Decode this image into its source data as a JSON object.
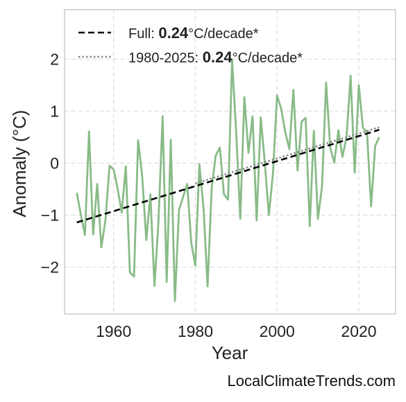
{
  "chart_data": {
    "type": "line",
    "xlabel": "Year",
    "ylabel": "Anomaly (°C)",
    "xlim": [
      1948,
      2029
    ],
    "ylim": [
      -2.9,
      2.95
    ],
    "x_ticks": [
      1960,
      1980,
      2000,
      2020
    ],
    "y_ticks": [
      2,
      1,
      0,
      -1,
      -2
    ],
    "y_tick_labels": [
      "2",
      "1",
      "0",
      "−1",
      "−2"
    ],
    "grid": true,
    "legend_position": "top-left",
    "series": [
      {
        "style": "line",
        "color": "#88bb88",
        "x": [
          1951,
          1952,
          1953,
          1954,
          1955,
          1956,
          1957,
          1958,
          1959,
          1960,
          1961,
          1962,
          1963,
          1964,
          1965,
          1966,
          1967,
          1968,
          1969,
          1970,
          1971,
          1972,
          1973,
          1974,
          1975,
          1976,
          1977,
          1978,
          1979,
          1980,
          1981,
          1982,
          1983,
          1984,
          1985,
          1986,
          1987,
          1988,
          1989,
          1990,
          1991,
          1992,
          1993,
          1994,
          1995,
          1996,
          1997,
          1998,
          1999,
          2000,
          2001,
          2002,
          2003,
          2004,
          2005,
          2006,
          2007,
          2008,
          2009,
          2010,
          2011,
          2012,
          2013,
          2014,
          2015,
          2016,
          2017,
          2018,
          2019,
          2020,
          2021,
          2022,
          2023,
          2024,
          2025
        ],
        "y": [
          -0.57,
          -1.0,
          -1.38,
          0.61,
          -1.37,
          -0.4,
          -1.62,
          -1.1,
          -0.05,
          -0.12,
          -0.5,
          -0.95,
          -0.06,
          -2.1,
          -2.18,
          0.44,
          -0.25,
          -1.48,
          -0.6,
          -2.36,
          -1.1,
          0.9,
          -2.28,
          0.45,
          -2.65,
          -0.9,
          -0.65,
          -0.4,
          -1.53,
          -1.97,
          -0.02,
          -0.85,
          -2.37,
          -0.48,
          0.15,
          0.3,
          -0.6,
          -0.7,
          1.98,
          0.6,
          -1.07,
          1.27,
          0.2,
          0.9,
          -1.1,
          0.88,
          0.0,
          -1.0,
          -0.2,
          1.3,
          1.05,
          0.6,
          0.27,
          1.41,
          -0.14,
          0.8,
          0.87,
          -1.21,
          0.62,
          -1.07,
          -0.45,
          1.55,
          0.3,
          0.01,
          0.63,
          0.12,
          0.5,
          1.68,
          -0.18,
          1.5,
          0.68,
          0.6,
          -0.83,
          0.33,
          0.5
        ]
      },
      {
        "name": "Full",
        "style": "dashed",
        "color": "#000000",
        "x": [
          1951,
          2025
        ],
        "y": [
          -1.14,
          0.64
        ]
      },
      {
        "name": "1980-2025",
        "style": "dotted",
        "color": "#888888",
        "x": [
          1980,
          2025
        ],
        "y": [
          -0.39,
          0.69
        ]
      }
    ],
    "legend": [
      {
        "prefix": "Full: ",
        "value": "0.24",
        "suffix": "°C/decade*",
        "style": "dashed"
      },
      {
        "prefix": "1980-2025: ",
        "value": "0.24",
        "suffix": "°C/decade*",
        "style": "dotted"
      }
    ]
  },
  "footer": "LocalClimateTrends.com"
}
